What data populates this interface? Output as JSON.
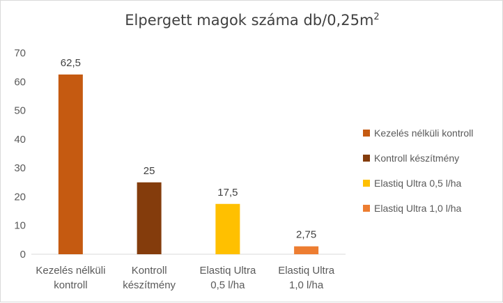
{
  "chart_data": {
    "type": "bar",
    "title": "Elpergett magok száma db/0,25m",
    "title_superscript": "2",
    "categories": [
      [
        "Kezelés nélküli",
        "kontroll"
      ],
      [
        "Kontroll",
        "készítmény"
      ],
      [
        "Elastiq  Ultra",
        "0,5 l/ha"
      ],
      [
        "Elastiq  Ultra",
        "1,0 l/ha"
      ]
    ],
    "values": [
      62.5,
      25,
      17.5,
      2.75
    ],
    "data_labels": [
      "62,5",
      "25",
      "17,5",
      "2,75"
    ],
    "colors": [
      "#c55a11",
      "#843c0c",
      "#ffc000",
      "#ed7d31"
    ],
    "ylim": [
      0,
      70
    ],
    "yticks": [
      0,
      10,
      20,
      30,
      40,
      50,
      60,
      70
    ],
    "grid": false,
    "legend": {
      "placement": "right",
      "entries": [
        {
          "label": "Kezelés nélküli kontroll",
          "color": "#c55a11"
        },
        {
          "label": "Kontroll készítmény",
          "color": "#843c0c"
        },
        {
          "label": "Elastiq  Ultra 0,5 l/ha",
          "color": "#ffc000"
        },
        {
          "label": "Elastiq  Ultra 1,0 l/ha",
          "color": "#ed7d31"
        }
      ]
    }
  }
}
